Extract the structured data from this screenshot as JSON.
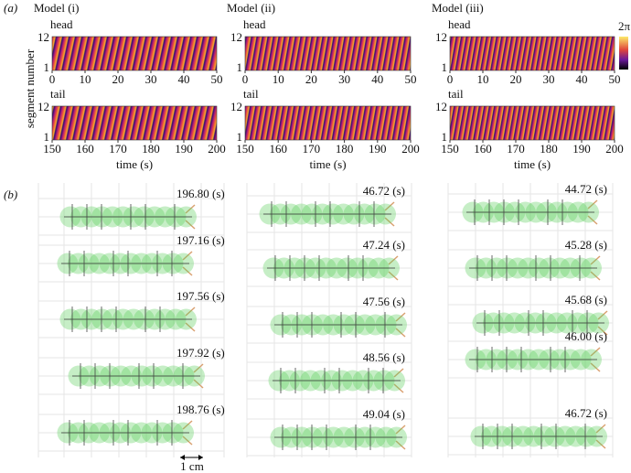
{
  "panel_a": {
    "label": "(a)",
    "ylabel": "segment number",
    "xlabel": "time (s)",
    "colorbar_label": "2π",
    "models": [
      "Model (i)",
      "Model (ii)",
      "Model (iii)"
    ],
    "head": {
      "label": "head",
      "xticks": [
        0,
        10,
        20,
        30,
        40,
        50
      ]
    },
    "tail": {
      "label": "tail",
      "xticks": [
        150,
        160,
        170,
        180,
        190,
        200
      ]
    },
    "yticks": [
      1,
      12
    ]
  },
  "panel_b": {
    "label": "(b)",
    "scale_bar": "1 cm",
    "columns": [
      [
        "196.80 (s)",
        "197.16 (s)",
        "197.56 (s)",
        "197.92 (s)",
        "198.76 (s)"
      ],
      [
        "46.72 (s)",
        "47.24 (s)",
        "47.56 (s)",
        "48.56 (s)",
        "49.04 (s)"
      ],
      [
        "44.72 (s)",
        "45.28 (s)",
        "45.68 (s)",
        "46.00 (s)",
        "46.72 (s)"
      ]
    ]
  }
}
